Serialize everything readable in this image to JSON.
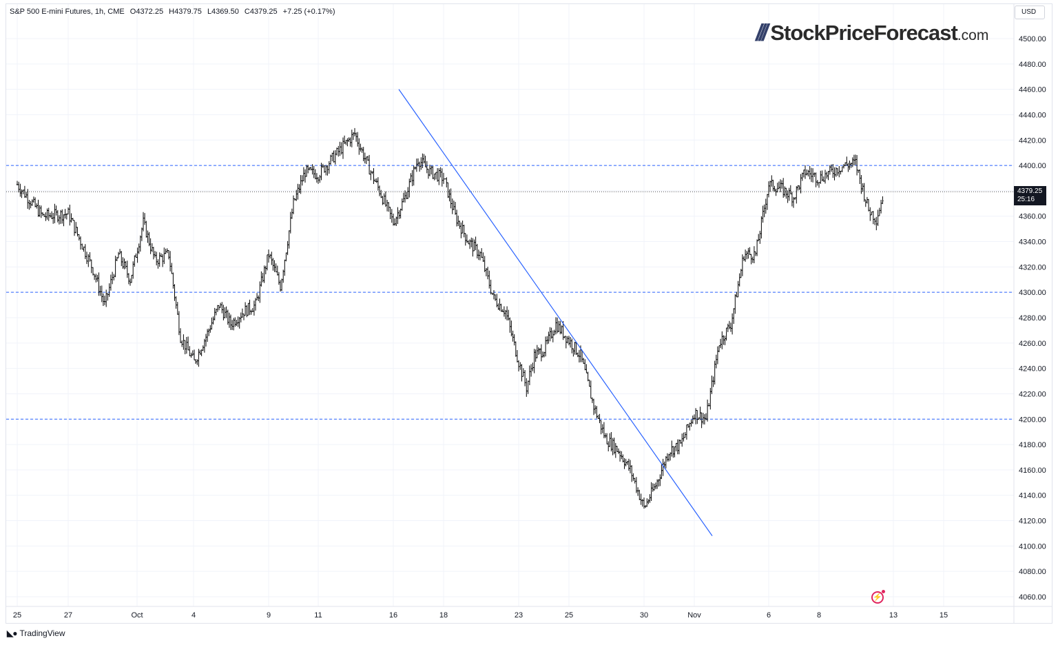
{
  "header": {
    "symbol": "S&P 500 E-mini Futures, 1h, CME",
    "open": "O4372.25",
    "high": "H4379.75",
    "low": "L4369.50",
    "close": "C4379.25",
    "change": "+7.25 (+0.17%)"
  },
  "currency_label": "USD",
  "price_tag": {
    "price": "4379.25",
    "countdown": "25:16"
  },
  "logo": {
    "name": "StockPriceForecast",
    "tld": ".com"
  },
  "footer": {
    "brand": "TradingView"
  },
  "colors": {
    "trendline": "#2962ff",
    "level_line": "#2962ff",
    "candle": "#000000",
    "price_tag_bg": "#131722"
  },
  "chart_data": {
    "type": "ohlc",
    "title": "S&P 500 E-mini Futures, 1h, CME",
    "ylim": [
      4050,
      4520
    ],
    "y_ticks": [
      "4500.00",
      "4480.00",
      "4460.00",
      "4440.00",
      "4420.00",
      "4400.00",
      "4360.00",
      "4340.00",
      "4320.00",
      "4300.00",
      "4280.00",
      "4260.00",
      "4240.00",
      "4220.00",
      "4200.00",
      "4180.00",
      "4160.00",
      "4140.00",
      "4120.00",
      "4100.00",
      "4080.00",
      "4060.00"
    ],
    "x_ticks": [
      "25",
      "27",
      "Oct",
      "4",
      "9",
      "11",
      "16",
      "18",
      "23",
      "25",
      "30",
      "Nov",
      "6",
      "8",
      "13",
      "15"
    ],
    "horizontal_levels": [
      4400,
      4300,
      4200
    ],
    "last_price": 4379.25,
    "trendline": {
      "from": {
        "date": "Oct 16",
        "price": 4460
      },
      "to": {
        "date": "Nov 2",
        "price": 4108
      }
    },
    "path_points": [
      {
        "date": "Sep 25",
        "price": 4385
      },
      {
        "date": "Sep 26",
        "price": 4360
      },
      {
        "date": "Sep 27",
        "price": 4362
      },
      {
        "date": "Sep 28",
        "price": 4318
      },
      {
        "date": "Sep 28",
        "price": 4290
      },
      {
        "date": "Sep 29",
        "price": 4330
      },
      {
        "date": "Sep 29",
        "price": 4310
      },
      {
        "date": "Oct 2",
        "price": 4355
      },
      {
        "date": "Oct 2",
        "price": 4325
      },
      {
        "date": "Oct 3",
        "price": 4330
      },
      {
        "date": "Oct 3",
        "price": 4265
      },
      {
        "date": "Oct 4",
        "price": 4245
      },
      {
        "date": "Oct 4",
        "price": 4265
      },
      {
        "date": "Oct 5",
        "price": 4290
      },
      {
        "date": "Oct 5",
        "price": 4275
      },
      {
        "date": "Oct 6",
        "price": 4285
      },
      {
        "date": "Oct 6",
        "price": 4290
      },
      {
        "date": "Oct 9",
        "price": 4330
      },
      {
        "date": "Oct 9",
        "price": 4305
      },
      {
        "date": "Oct 10",
        "price": 4370
      },
      {
        "date": "Oct 10",
        "price": 4395
      },
      {
        "date": "Oct 11",
        "price": 4393
      },
      {
        "date": "Oct 12",
        "price": 4415
      },
      {
        "date": "Oct 12",
        "price": 4425
      },
      {
        "date": "Oct 13",
        "price": 4400
      },
      {
        "date": "Oct 13",
        "price": 4380
      },
      {
        "date": "Oct 16",
        "price": 4355
      },
      {
        "date": "Oct 16",
        "price": 4375
      },
      {
        "date": "Oct 17",
        "price": 4405
      },
      {
        "date": "Oct 17",
        "price": 4395
      },
      {
        "date": "Oct 18",
        "price": 4390
      },
      {
        "date": "Oct 18",
        "price": 4360
      },
      {
        "date": "Oct 19",
        "price": 4340
      },
      {
        "date": "Oct 19",
        "price": 4330
      },
      {
        "date": "Oct 20",
        "price": 4295
      },
      {
        "date": "Oct 20",
        "price": 4285
      },
      {
        "date": "Oct 23",
        "price": 4245
      },
      {
        "date": "Oct 23",
        "price": 4225
      },
      {
        "date": "Oct 23",
        "price": 4250
      },
      {
        "date": "Oct 24",
        "price": 4255
      },
      {
        "date": "Oct 24",
        "price": 4275
      },
      {
        "date": "Oct 25",
        "price": 4262
      },
      {
        "date": "Oct 25",
        "price": 4250
      },
      {
        "date": "Oct 26",
        "price": 4210
      },
      {
        "date": "Oct 26",
        "price": 4185
      },
      {
        "date": "Oct 27",
        "price": 4175
      },
      {
        "date": "Oct 27",
        "price": 4160
      },
      {
        "date": "Oct 30",
        "price": 4130
      },
      {
        "date": "Oct 30",
        "price": 4148
      },
      {
        "date": "Oct 31",
        "price": 4175
      },
      {
        "date": "Oct 31",
        "price": 4180
      },
      {
        "date": "Nov 1",
        "price": 4205
      },
      {
        "date": "Nov 1",
        "price": 4200
      },
      {
        "date": "Nov 2",
        "price": 4260
      },
      {
        "date": "Nov 2",
        "price": 4275
      },
      {
        "date": "Nov 3",
        "price": 4330
      },
      {
        "date": "Nov 3",
        "price": 4330
      },
      {
        "date": "Nov 6",
        "price": 4385
      },
      {
        "date": "Nov 6",
        "price": 4382
      },
      {
        "date": "Nov 7",
        "price": 4375
      },
      {
        "date": "Nov 7",
        "price": 4395
      },
      {
        "date": "Nov 8",
        "price": 4390
      },
      {
        "date": "Nov 9",
        "price": 4400
      },
      {
        "date": "Nov 9",
        "price": 4402
      },
      {
        "date": "Nov 10",
        "price": 4365
      },
      {
        "date": "Nov 10",
        "price": 4358
      },
      {
        "date": "Nov 10",
        "price": 4379.25
      }
    ]
  }
}
